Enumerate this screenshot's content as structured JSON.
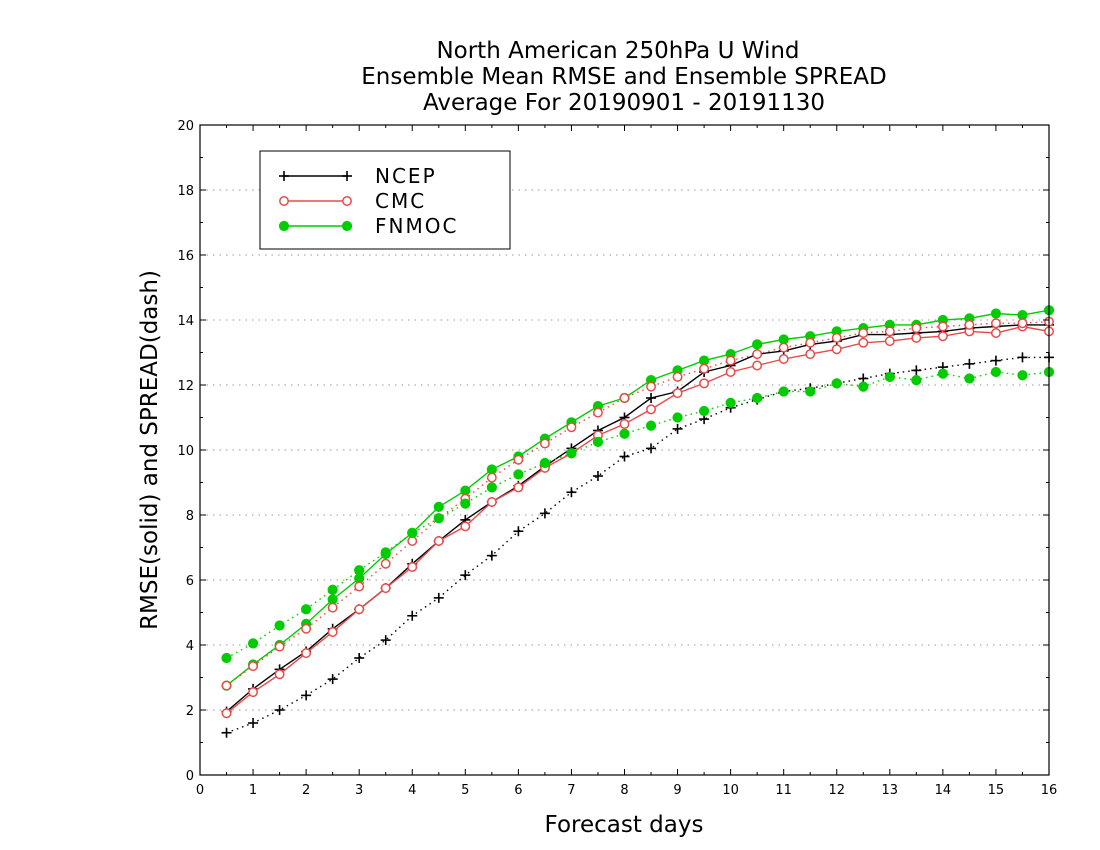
{
  "chart_data": {
    "type": "line",
    "title": [
      "North American 250hPa U Wind",
      "Ensemble Mean RMSE and Ensemble SPREAD",
      "Average For 20190901 - 20191130"
    ],
    "xlabel": "Forecast days",
    "ylabel": "RMSE(solid) and SPREAD(dash)",
    "xlim": [
      0,
      16
    ],
    "ylim": [
      0,
      20
    ],
    "xticks": [
      "0",
      "1",
      "2",
      "3",
      "4",
      "5",
      "6",
      "7",
      "8",
      "9",
      "10",
      "11",
      "12",
      "13",
      "14",
      "15",
      "16"
    ],
    "yticks": [
      "0",
      "2",
      "4",
      "6",
      "8",
      "10",
      "12",
      "14",
      "16",
      "18",
      "20"
    ],
    "grid": true,
    "legend_position": "top-left",
    "x": [
      0.5,
      1,
      1.5,
      2,
      2.5,
      3,
      3.5,
      4,
      4.5,
      5,
      5.5,
      6,
      6.5,
      7,
      7.5,
      8,
      8.5,
      9,
      9.5,
      10,
      10.5,
      11,
      11.5,
      12,
      12.5,
      13,
      13.5,
      14,
      14.5,
      15,
      15.5,
      16
    ],
    "series": [
      {
        "name": "NCEP",
        "kind": "RMSE",
        "color": "#000000",
        "marker": "plus",
        "line": "solid",
        "values": [
          1.95,
          2.65,
          3.25,
          3.8,
          4.5,
          5.1,
          5.75,
          6.5,
          7.2,
          7.85,
          8.4,
          8.9,
          9.5,
          10.05,
          10.6,
          11.0,
          11.6,
          11.8,
          12.4,
          12.6,
          12.95,
          13.05,
          13.25,
          13.35,
          13.55,
          13.55,
          13.6,
          13.65,
          13.75,
          13.8,
          13.85,
          13.85
        ]
      },
      {
        "name": "CMC",
        "kind": "RMSE",
        "color": "#e84a4a",
        "marker": "circle-open",
        "line": "solid",
        "values": [
          1.9,
          2.55,
          3.1,
          3.75,
          4.4,
          5.1,
          5.75,
          6.4,
          7.2,
          7.65,
          8.4,
          8.85,
          9.45,
          9.9,
          10.45,
          10.8,
          11.25,
          11.75,
          12.05,
          12.4,
          12.6,
          12.8,
          12.95,
          13.1,
          13.3,
          13.35,
          13.45,
          13.5,
          13.65,
          13.6,
          13.8,
          13.65
        ]
      },
      {
        "name": "FNMOC",
        "kind": "RMSE",
        "color": "#00cc00",
        "marker": "circle-filled",
        "line": "solid",
        "values": [
          2.75,
          3.4,
          4.0,
          4.65,
          5.4,
          6.05,
          6.8,
          7.45,
          8.25,
          8.75,
          9.4,
          9.8,
          10.35,
          10.85,
          11.35,
          11.6,
          12.15,
          12.45,
          12.75,
          12.95,
          13.25,
          13.4,
          13.5,
          13.65,
          13.75,
          13.85,
          13.85,
          14.0,
          14.05,
          14.2,
          14.15,
          14.3
        ]
      },
      {
        "name": "NCEP",
        "kind": "SPREAD",
        "color": "#000000",
        "marker": "plus",
        "line": "dotted",
        "values": [
          1.3,
          1.6,
          2.0,
          2.45,
          2.95,
          3.6,
          4.15,
          4.9,
          5.45,
          6.15,
          6.75,
          7.5,
          8.05,
          8.7,
          9.2,
          9.8,
          10.05,
          10.65,
          10.95,
          11.3,
          11.55,
          11.8,
          11.9,
          12.05,
          12.2,
          12.35,
          12.45,
          12.55,
          12.65,
          12.75,
          12.85,
          12.85
        ]
      },
      {
        "name": "CMC",
        "kind": "SPREAD",
        "color": "#e84a4a",
        "marker": "circle-open",
        "line": "dotted",
        "values": [
          2.75,
          3.35,
          3.95,
          4.5,
          5.15,
          5.8,
          6.5,
          7.2,
          7.9,
          8.5,
          9.15,
          9.7,
          10.2,
          10.7,
          11.15,
          11.6,
          11.95,
          12.25,
          12.5,
          12.75,
          12.95,
          13.15,
          13.3,
          13.45,
          13.6,
          13.65,
          13.75,
          13.8,
          13.85,
          13.9,
          13.9,
          13.95
        ]
      },
      {
        "name": "FNMOC",
        "kind": "SPREAD",
        "color": "#00cc00",
        "marker": "circle-filled",
        "line": "dotted",
        "values": [
          3.6,
          4.05,
          4.6,
          5.1,
          5.7,
          6.3,
          6.85,
          7.45,
          7.9,
          8.35,
          8.85,
          9.25,
          9.6,
          9.9,
          10.25,
          10.5,
          10.75,
          11.0,
          11.2,
          11.45,
          11.6,
          11.8,
          11.8,
          12.05,
          11.95,
          12.25,
          12.15,
          12.35,
          12.2,
          12.4,
          12.3,
          12.4
        ]
      }
    ]
  }
}
